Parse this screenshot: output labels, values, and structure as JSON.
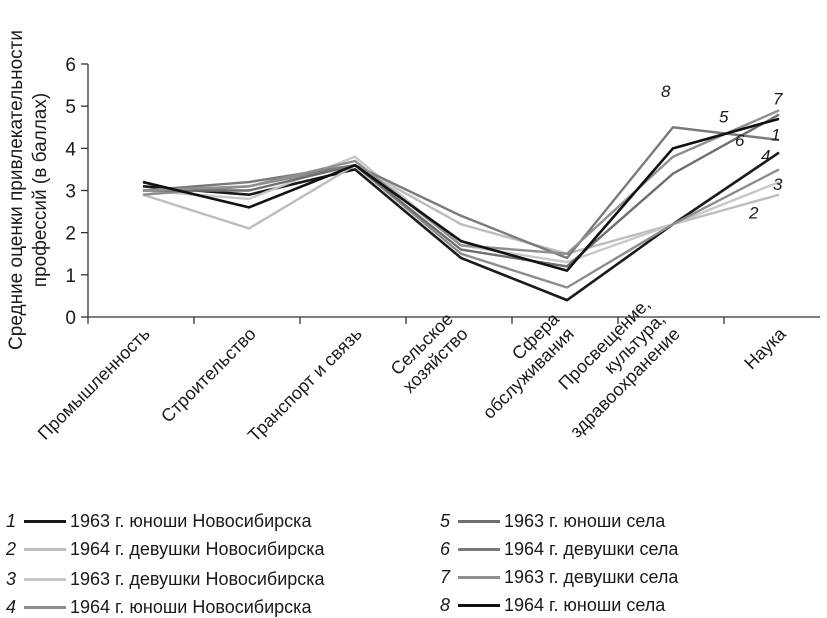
{
  "chart_data": {
    "type": "line",
    "ylabel": "Средние оценки привлекательности профессий  (в  баллах)",
    "ylim": [
      0,
      6
    ],
    "yticks": [
      "0",
      "1",
      "2",
      "3",
      "4",
      "5",
      "6"
    ],
    "grid": false,
    "legend_position": "bottom",
    "categories": [
      "Промышленность",
      "Строительство",
      "Транспорт и связь",
      "Сельское хозяйство",
      "Сфера обслуживания",
      "Просвещение, культура, здравоохранение",
      "Наука"
    ],
    "series": [
      {
        "id": "1",
        "name": "1963 г. юноши Новосибирска",
        "color": "#1a1a1a",
        "values": [
          3.1,
          2.9,
          3.5,
          1.4,
          0.4,
          2.2,
          3.9
        ]
      },
      {
        "id": "2",
        "name": "1964 г. девушки Новосибирска",
        "color": "#bdbdbd",
        "values": [
          2.9,
          2.1,
          3.6,
          2.2,
          1.5,
          2.2,
          2.9
        ]
      },
      {
        "id": "3",
        "name": "1963 г.  девушки Новосибирска",
        "color": "#c8c8c8",
        "values": [
          3.0,
          2.8,
          3.8,
          1.7,
          1.3,
          2.2,
          3.2
        ]
      },
      {
        "id": "4",
        "name": "1964 г.  юноши Новосибирска",
        "color": "#8c8c8c",
        "values": [
          2.9,
          3.1,
          3.6,
          1.5,
          0.7,
          2.2,
          3.5
        ]
      },
      {
        "id": "5",
        "name": "1963 г.  юноши села",
        "color": "#6e6e6e",
        "values": [
          3.0,
          3.0,
          3.6,
          1.6,
          1.2,
          3.4,
          4.8
        ]
      },
      {
        "id": "6",
        "name": "1964 г.  девушки села",
        "color": "#7a7a7a",
        "values": [
          3.0,
          3.2,
          3.6,
          2.4,
          1.4,
          4.5,
          4.2
        ]
      },
      {
        "id": "7",
        "name": "1963 г. девушки села",
        "color": "#8f8f8f",
        "values": [
          3.0,
          3.1,
          3.7,
          1.7,
          1.5,
          3.8,
          4.9
        ]
      },
      {
        "id": "8",
        "name": "1964 г.  юноши села",
        "color": "#111111",
        "values": [
          3.2,
          2.6,
          3.6,
          1.8,
          1.1,
          4.0,
          4.7
        ]
      }
    ],
    "series_end_labels": [
      {
        "id": "1",
        "text": "1"
      },
      {
        "id": "2",
        "text": "2"
      },
      {
        "id": "3",
        "text": "3"
      },
      {
        "id": "4",
        "text": "4"
      },
      {
        "id": "5",
        "text": "5"
      },
      {
        "id": "6",
        "text": "6"
      },
      {
        "id": "7",
        "text": "7"
      },
      {
        "id": "8",
        "text": "8"
      }
    ]
  }
}
